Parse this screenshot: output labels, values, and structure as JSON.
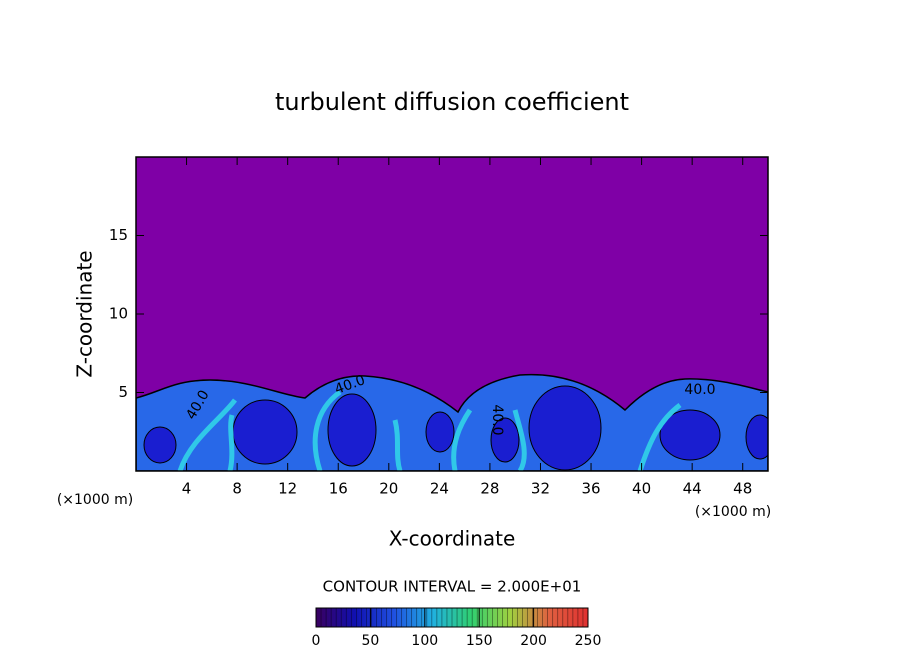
{
  "chart_data": {
    "type": "contour",
    "title": "turbulent diffusion coefficient",
    "xlabel": "X-coordinate",
    "ylabel": "Z-coordinate",
    "x_unit": "(×1000 m)",
    "y_unit": "(×1000 m)",
    "xlim": [
      0,
      50
    ],
    "xticks": [
      4,
      8,
      12,
      16,
      20,
      24,
      28,
      32,
      36,
      40,
      44,
      48
    ],
    "ylim": [
      0,
      20
    ],
    "yticks": [
      5,
      10,
      15
    ],
    "contour_interval": "CONTOUR INTERVAL = 2.000E+01",
    "contour_labels": [
      "40.0",
      "40.0",
      "40.0",
      "40.0"
    ],
    "background_color": "#7f00a6",
    "colorbar": {
      "lim": [
        0,
        250
      ],
      "ticks": [
        0,
        50,
        100,
        150,
        200,
        250
      ],
      "colors": [
        "#3a0060",
        "#1010b0",
        "#2050e0",
        "#20b0e0",
        "#30d070",
        "#a0d040",
        "#e06040",
        "#e03030"
      ]
    }
  }
}
